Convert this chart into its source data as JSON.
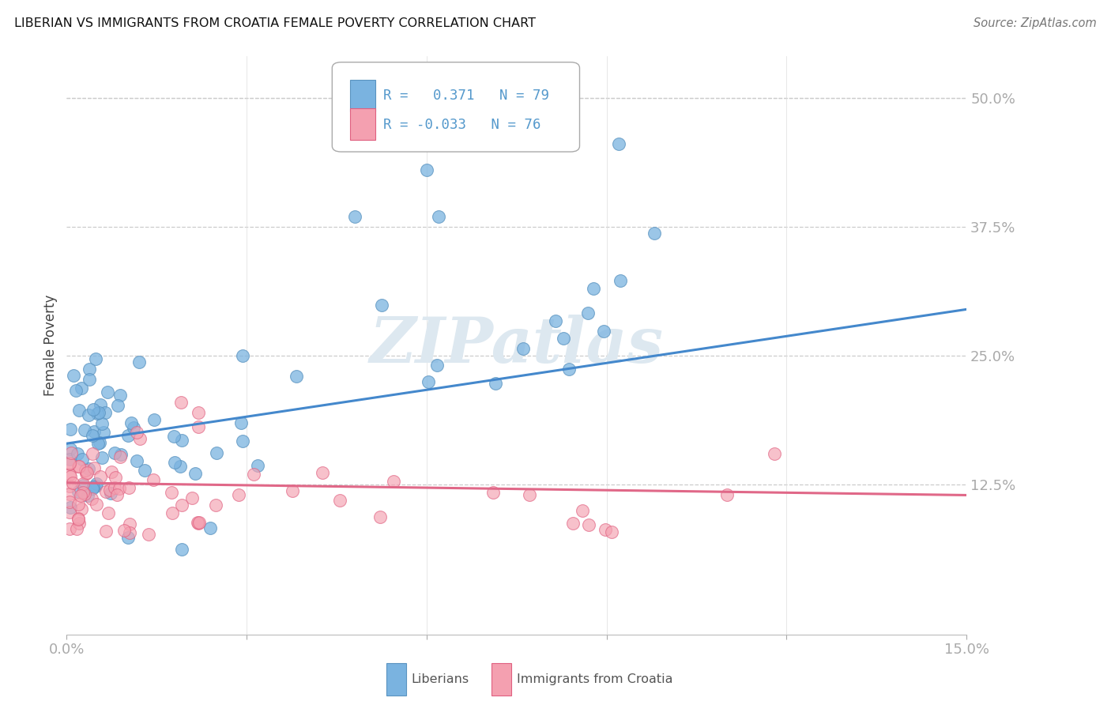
{
  "title": "LIBERIAN VS IMMIGRANTS FROM CROATIA FEMALE POVERTY CORRELATION CHART",
  "source": "Source: ZipAtlas.com",
  "ylabel": "Female Poverty",
  "ytick_vals": [
    0.0,
    0.125,
    0.25,
    0.375,
    0.5
  ],
  "ytick_labels": [
    "",
    "12.5%",
    "25.0%",
    "37.5%",
    "50.0%"
  ],
  "xlim": [
    0.0,
    0.15
  ],
  "ylim": [
    -0.02,
    0.54
  ],
  "legend_line1": "R =   0.371   N = 79",
  "legend_line2": "R = -0.033   N = 76",
  "blue_color": "#7ab3e0",
  "blue_edge_color": "#5a93c0",
  "pink_color": "#f4a0b0",
  "pink_edge_color": "#e06080",
  "blue_line_color": "#4488cc",
  "pink_line_color": "#e06888",
  "tick_label_color": "#5599cc",
  "watermark": "ZIPatlas",
  "watermark_color": "#dde8f0",
  "blue_line_y0": 0.165,
  "blue_line_y1": 0.295,
  "pink_line_y0": 0.127,
  "pink_line_y1": 0.115
}
